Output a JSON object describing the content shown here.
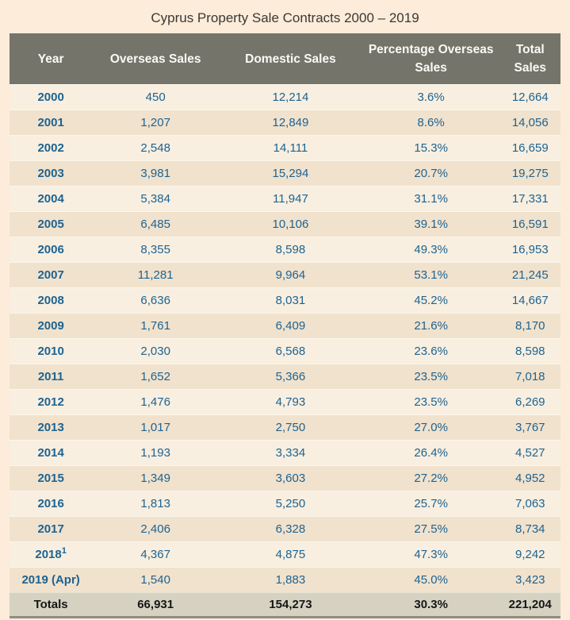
{
  "title": "Cyprus Property Sale Contracts 2000 – 2019",
  "chart_data": {
    "type": "table",
    "title": "Cyprus Property Sale Contracts 2000 – 2019",
    "columns": [
      "Year",
      "Overseas Sales",
      "Domestic Sales",
      "Percentage Overseas Sales",
      "Total Sales"
    ],
    "rows": [
      {
        "year": "2000",
        "overseas": "450",
        "domestic": "12,214",
        "percentage": "3.6%",
        "total": "12,664"
      },
      {
        "year": "2001",
        "overseas": "1,207",
        "domestic": "12,849",
        "percentage": "8.6%",
        "total": "14,056"
      },
      {
        "year": "2002",
        "overseas": "2,548",
        "domestic": "14,111",
        "percentage": "15.3%",
        "total": "16,659"
      },
      {
        "year": "2003",
        "overseas": "3,981",
        "domestic": "15,294",
        "percentage": "20.7%",
        "total": "19,275"
      },
      {
        "year": "2004",
        "overseas": "5,384",
        "domestic": "11,947",
        "percentage": "31.1%",
        "total": "17,331"
      },
      {
        "year": "2005",
        "overseas": "6,485",
        "domestic": "10,106",
        "percentage": "39.1%",
        "total": "16,591"
      },
      {
        "year": "2006",
        "overseas": "8,355",
        "domestic": "8,598",
        "percentage": "49.3%",
        "total": "16,953"
      },
      {
        "year": "2007",
        "overseas": "11,281",
        "domestic": "9,964",
        "percentage": "53.1%",
        "total": "21,245"
      },
      {
        "year": "2008",
        "overseas": "6,636",
        "domestic": "8,031",
        "percentage": "45.2%",
        "total": "14,667"
      },
      {
        "year": "2009",
        "overseas": "1,761",
        "domestic": "6,409",
        "percentage": "21.6%",
        "total": "8,170"
      },
      {
        "year": "2010",
        "overseas": "2,030",
        "domestic": "6,568",
        "percentage": "23.6%",
        "total": "8,598"
      },
      {
        "year": "2011",
        "overseas": "1,652",
        "domestic": "5,366",
        "percentage": "23.5%",
        "total": "7,018"
      },
      {
        "year": "2012",
        "overseas": "1,476",
        "domestic": "4,793",
        "percentage": "23.5%",
        "total": "6,269"
      },
      {
        "year": "2013",
        "overseas": "1,017",
        "domestic": "2,750",
        "percentage": "27.0%",
        "total": "3,767"
      },
      {
        "year": "2014",
        "overseas": "1,193",
        "domestic": "3,334",
        "percentage": "26.4%",
        "total": "4,527"
      },
      {
        "year": "2015",
        "overseas": "1,349",
        "domestic": "3,603",
        "percentage": "27.2%",
        "total": "4,952"
      },
      {
        "year": "2016",
        "overseas": "1,813",
        "domestic": "5,250",
        "percentage": "25.7%",
        "total": "7,063"
      },
      {
        "year": "2017",
        "overseas": "2,406",
        "domestic": "6,328",
        "percentage": "27.5%",
        "total": "8,734"
      },
      {
        "year": "2018",
        "year_note": "1",
        "overseas": "4,367",
        "domestic": "4,875",
        "percentage": "47.3%",
        "total": "9,242"
      },
      {
        "year": "2019 (Apr)",
        "overseas": "1,540",
        "domestic": "1,883",
        "percentage": "45.0%",
        "total": "3,423"
      }
    ],
    "totals": {
      "year": "Totals",
      "overseas": "66,931",
      "domestic": "154,273",
      "percentage": "30.3%",
      "total": "221,204"
    }
  },
  "colors": {
    "page_background": "#fcecd9",
    "header_background": "#75746a",
    "header_text": "#faf9f5",
    "row_light": "#f8efe0",
    "row_dark": "#f1e2cd",
    "data_text": "#1e6391",
    "totals_background": "#d6d2c2",
    "totals_text": "#161616",
    "title_text": "#3a3836"
  }
}
